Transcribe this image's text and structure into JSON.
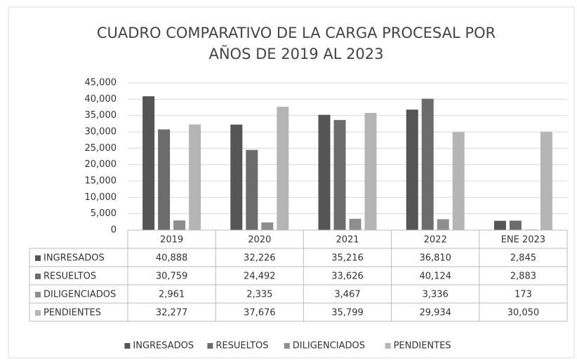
{
  "chart_data": {
    "type": "bar",
    "title": "CUADRO COMPARATIVO DE LA CARGA PROCESAL POR",
    "subtitle": "AÑOS DE 2019 AL 2023",
    "categories": [
      "2019",
      "2020",
      "2021",
      "2022",
      "ENE 2023"
    ],
    "series": [
      {
        "name": "INGRESADOS",
        "color": "#555555",
        "values": [
          40888,
          32226,
          35216,
          36810,
          2845
        ],
        "value_labels": [
          "40,888",
          "32,226",
          "35,216",
          "36,810",
          "2,845"
        ]
      },
      {
        "name": "RESUELTOS",
        "color": "#6c6c6c",
        "values": [
          30759,
          24492,
          33626,
          40124,
          2883
        ],
        "value_labels": [
          "30,759",
          "24,492",
          "33,626",
          "40,124",
          "2,883"
        ]
      },
      {
        "name": "DILIGENCIADOS",
        "color": "#8e8e8e",
        "values": [
          2961,
          2335,
          3467,
          3336,
          173
        ],
        "value_labels": [
          "2,961",
          "2,335",
          "3,467",
          "3,336",
          "173"
        ]
      },
      {
        "name": "PENDIENTES",
        "color": "#b5b5b5",
        "values": [
          32277,
          37676,
          35799,
          29934,
          30050
        ],
        "value_labels": [
          "32,277",
          "37,676",
          "35,799",
          "29,934",
          "30,050"
        ]
      }
    ],
    "ylim": [
      0,
      45000
    ],
    "yticks": [
      0,
      {
        "value": 5000,
        "label": "5,000"
      },
      {
        "value": 10000,
        "label": "10,000"
      },
      {
        "value": 15000,
        "label": "15,000"
      },
      {
        "value": 20000,
        "label": "20,000"
      },
      {
        "value": 25000,
        "label": "25,000"
      },
      {
        "value": 30000,
        "label": "30,000"
      },
      {
        "value": 35000,
        "label": "35,000"
      },
      {
        "value": 40000,
        "label": "40,000"
      },
      {
        "value": 45000,
        "label": "45,000"
      }
    ],
    "grid": true
  }
}
